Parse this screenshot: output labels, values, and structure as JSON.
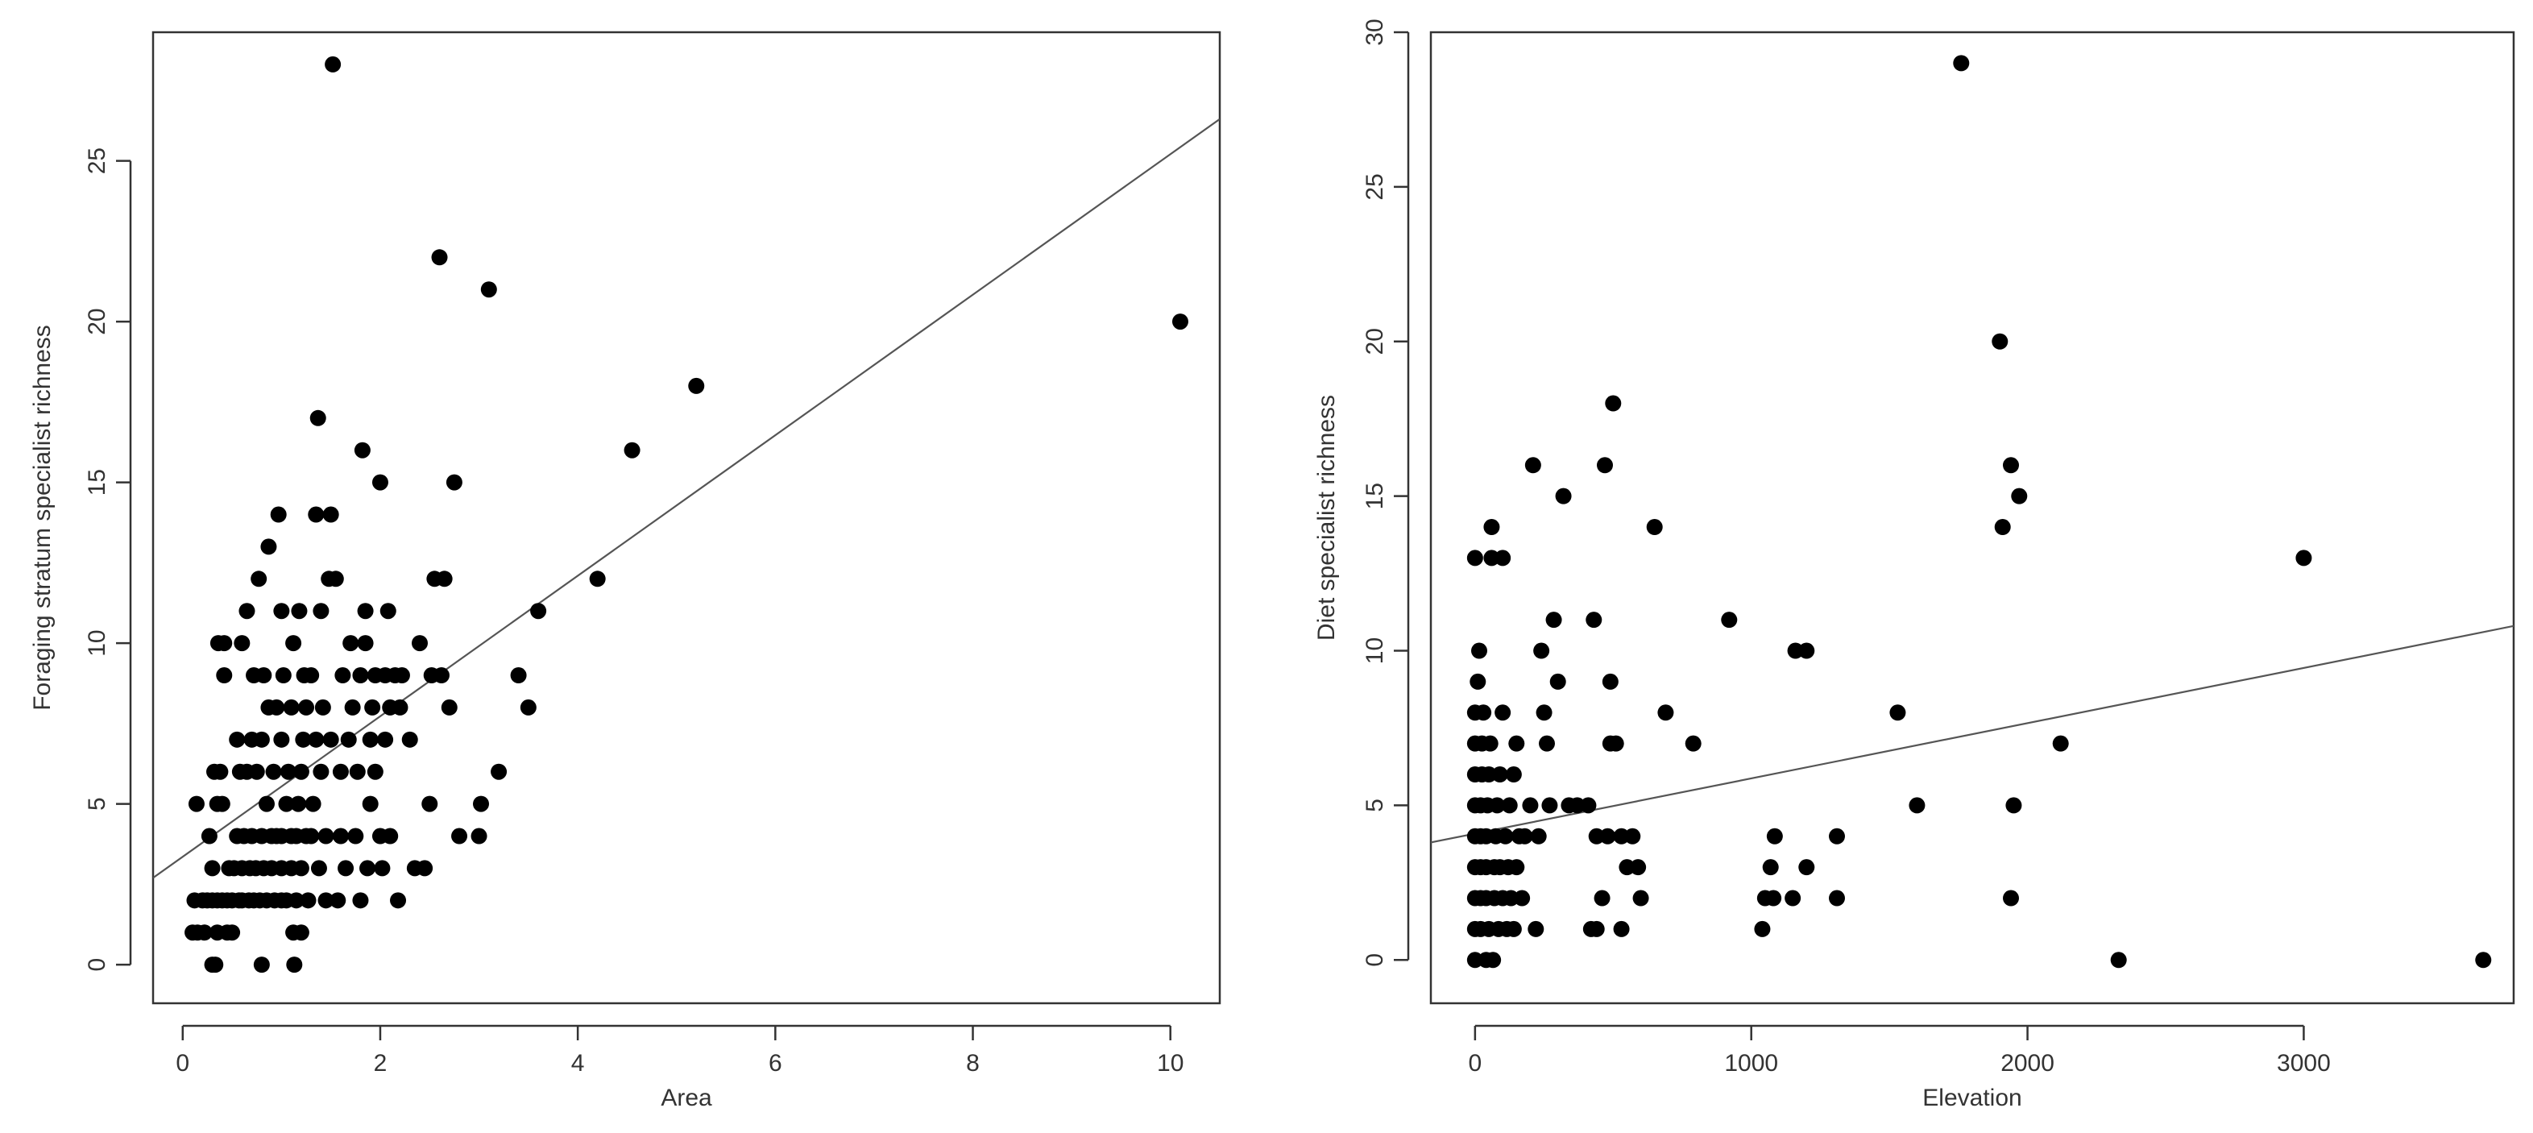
{
  "chart_data": [
    {
      "type": "scatter",
      "xlabel": "Area",
      "ylabel": "Foraging stratum specialist richness",
      "xlim": [
        -0.3,
        10.5
      ],
      "ylim": [
        -1.2,
        29
      ],
      "xticks": [
        0,
        2,
        4,
        6,
        8,
        10
      ],
      "yticks": [
        0,
        5,
        10,
        15,
        20,
        25
      ],
      "grid": false,
      "regression_line": {
        "x": [
          -0.3,
          10.5
        ],
        "y": [
          2.7,
          26.3
        ]
      },
      "points": [
        [
          0.1,
          1
        ],
        [
          0.12,
          2
        ],
        [
          0.14,
          5
        ],
        [
          0.15,
          1
        ],
        [
          0.2,
          2
        ],
        [
          0.22,
          1
        ],
        [
          0.25,
          2
        ],
        [
          0.27,
          4
        ],
        [
          0.3,
          0
        ],
        [
          0.3,
          2
        ],
        [
          0.3,
          3
        ],
        [
          0.32,
          6
        ],
        [
          0.33,
          0
        ],
        [
          0.35,
          1
        ],
        [
          0.35,
          2
        ],
        [
          0.35,
          5
        ],
        [
          0.36,
          10
        ],
        [
          0.38,
          6
        ],
        [
          0.4,
          2
        ],
        [
          0.4,
          5
        ],
        [
          0.42,
          9
        ],
        [
          0.42,
          10
        ],
        [
          0.45,
          1
        ],
        [
          0.45,
          2
        ],
        [
          0.47,
          3
        ],
        [
          0.5,
          1
        ],
        [
          0.5,
          2
        ],
        [
          0.52,
          3
        ],
        [
          0.55,
          4
        ],
        [
          0.55,
          7
        ],
        [
          0.57,
          2
        ],
        [
          0.58,
          6
        ],
        [
          0.6,
          2
        ],
        [
          0.6,
          3
        ],
        [
          0.6,
          10
        ],
        [
          0.62,
          4
        ],
        [
          0.65,
          6
        ],
        [
          0.65,
          11
        ],
        [
          0.67,
          2
        ],
        [
          0.68,
          3
        ],
        [
          0.7,
          4
        ],
        [
          0.7,
          7
        ],
        [
          0.72,
          2
        ],
        [
          0.72,
          9
        ],
        [
          0.74,
          3
        ],
        [
          0.75,
          6
        ],
        [
          0.77,
          12
        ],
        [
          0.78,
          2
        ],
        [
          0.8,
          0
        ],
        [
          0.8,
          4
        ],
        [
          0.8,
          7
        ],
        [
          0.82,
          3
        ],
        [
          0.82,
          9
        ],
        [
          0.85,
          2
        ],
        [
          0.85,
          5
        ],
        [
          0.87,
          8
        ],
        [
          0.87,
          13
        ],
        [
          0.9,
          3
        ],
        [
          0.9,
          4
        ],
        [
          0.92,
          6
        ],
        [
          0.93,
          2
        ],
        [
          0.95,
          8
        ],
        [
          0.95,
          4
        ],
        [
          0.97,
          14
        ],
        [
          1.0,
          2
        ],
        [
          1.0,
          3
        ],
        [
          1.0,
          4
        ],
        [
          1.0,
          7
        ],
        [
          1.0,
          11
        ],
        [
          1.02,
          9
        ],
        [
          1.05,
          5
        ],
        [
          1.05,
          2
        ],
        [
          1.07,
          6
        ],
        [
          1.1,
          3
        ],
        [
          1.1,
          4
        ],
        [
          1.1,
          8
        ],
        [
          1.12,
          1
        ],
        [
          1.12,
          10
        ],
        [
          1.13,
          0
        ],
        [
          1.15,
          4
        ],
        [
          1.15,
          2
        ],
        [
          1.17,
          5
        ],
        [
          1.18,
          11
        ],
        [
          1.2,
          1
        ],
        [
          1.2,
          3
        ],
        [
          1.2,
          6
        ],
        [
          1.22,
          7
        ],
        [
          1.23,
          9
        ],
        [
          1.25,
          4
        ],
        [
          1.25,
          8
        ],
        [
          1.27,
          2
        ],
        [
          1.3,
          4
        ],
        [
          1.3,
          9
        ],
        [
          1.32,
          5
        ],
        [
          1.35,
          14
        ],
        [
          1.35,
          7
        ],
        [
          1.37,
          17
        ],
        [
          1.38,
          3
        ],
        [
          1.4,
          11
        ],
        [
          1.4,
          6
        ],
        [
          1.42,
          8
        ],
        [
          1.45,
          2
        ],
        [
          1.45,
          4
        ],
        [
          1.48,
          12
        ],
        [
          1.5,
          7
        ],
        [
          1.5,
          14
        ],
        [
          1.52,
          28
        ],
        [
          1.55,
          12
        ],
        [
          1.57,
          2
        ],
        [
          1.6,
          4
        ],
        [
          1.6,
          6
        ],
        [
          1.62,
          9
        ],
        [
          1.65,
          3
        ],
        [
          1.68,
          7
        ],
        [
          1.7,
          10
        ],
        [
          1.72,
          8
        ],
        [
          1.75,
          4
        ],
        [
          1.77,
          6
        ],
        [
          1.8,
          2
        ],
        [
          1.8,
          9
        ],
        [
          1.82,
          16
        ],
        [
          1.85,
          11
        ],
        [
          1.85,
          10
        ],
        [
          1.87,
          3
        ],
        [
          1.9,
          7
        ],
        [
          1.9,
          5
        ],
        [
          1.92,
          8
        ],
        [
          1.95,
          9
        ],
        [
          1.95,
          6
        ],
        [
          2.0,
          4
        ],
        [
          2.0,
          15
        ],
        [
          2.02,
          3
        ],
        [
          2.05,
          7
        ],
        [
          2.05,
          9
        ],
        [
          2.08,
          11
        ],
        [
          2.1,
          4
        ],
        [
          2.1,
          8
        ],
        [
          2.15,
          9
        ],
        [
          2.18,
          2
        ],
        [
          2.2,
          8
        ],
        [
          2.22,
          9
        ],
        [
          2.3,
          7
        ],
        [
          2.35,
          3
        ],
        [
          2.4,
          10
        ],
        [
          2.45,
          3
        ],
        [
          2.5,
          5
        ],
        [
          2.52,
          9
        ],
        [
          2.55,
          12
        ],
        [
          2.6,
          22
        ],
        [
          2.62,
          9
        ],
        [
          2.65,
          12
        ],
        [
          2.7,
          8
        ],
        [
          2.75,
          15
        ],
        [
          2.8,
          4
        ],
        [
          3.0,
          4
        ],
        [
          3.02,
          5
        ],
        [
          3.1,
          21
        ],
        [
          3.2,
          6
        ],
        [
          3.4,
          9
        ],
        [
          3.5,
          8
        ],
        [
          3.6,
          11
        ],
        [
          4.2,
          12
        ],
        [
          4.55,
          16
        ],
        [
          5.2,
          18
        ],
        [
          10.1,
          20
        ]
      ]
    },
    {
      "type": "scatter",
      "xlabel": "Elevation",
      "ylabel": "Diet specialist richness",
      "xlim": [
        -160,
        3760
      ],
      "ylim": [
        -1.4,
        30
      ],
      "xticks": [
        0,
        1000,
        2000,
        3000
      ],
      "yticks": [
        0,
        5,
        10,
        15,
        20,
        25,
        30
      ],
      "grid": false,
      "regression_line": {
        "x": [
          -160,
          3760
        ],
        "y": [
          3.8,
          10.8
        ]
      },
      "points": [
        [
          0,
          0
        ],
        [
          0,
          1
        ],
        [
          0,
          2
        ],
        [
          0,
          3
        ],
        [
          0,
          4
        ],
        [
          0,
          5
        ],
        [
          0,
          6
        ],
        [
          0,
          7
        ],
        [
          0,
          8
        ],
        [
          0,
          13
        ],
        [
          10,
          9
        ],
        [
          15,
          10
        ],
        [
          20,
          1
        ],
        [
          20,
          2
        ],
        [
          20,
          3
        ],
        [
          20,
          4
        ],
        [
          20,
          5
        ],
        [
          25,
          6
        ],
        [
          25,
          7
        ],
        [
          30,
          8
        ],
        [
          40,
          0
        ],
        [
          40,
          2
        ],
        [
          40,
          3
        ],
        [
          40,
          4
        ],
        [
          45,
          5
        ],
        [
          50,
          1
        ],
        [
          50,
          6
        ],
        [
          55,
          7
        ],
        [
          60,
          14
        ],
        [
          60,
          13
        ],
        [
          65,
          0
        ],
        [
          70,
          2
        ],
        [
          70,
          3
        ],
        [
          75,
          4
        ],
        [
          80,
          5
        ],
        [
          85,
          1
        ],
        [
          90,
          3
        ],
        [
          90,
          6
        ],
        [
          100,
          8
        ],
        [
          100,
          13
        ],
        [
          100,
          2
        ],
        [
          110,
          4
        ],
        [
          115,
          1
        ],
        [
          120,
          3
        ],
        [
          125,
          5
        ],
        [
          130,
          2
        ],
        [
          140,
          6
        ],
        [
          140,
          1
        ],
        [
          150,
          7
        ],
        [
          150,
          3
        ],
        [
          160,
          4
        ],
        [
          170,
          2
        ],
        [
          180,
          4
        ],
        [
          200,
          5
        ],
        [
          210,
          16
        ],
        [
          220,
          1
        ],
        [
          230,
          4
        ],
        [
          240,
          10
        ],
        [
          250,
          8
        ],
        [
          260,
          7
        ],
        [
          270,
          5
        ],
        [
          285,
          11
        ],
        [
          300,
          9
        ],
        [
          320,
          15
        ],
        [
          340,
          5
        ],
        [
          370,
          5
        ],
        [
          410,
          5
        ],
        [
          420,
          1
        ],
        [
          430,
          11
        ],
        [
          440,
          1
        ],
        [
          440,
          4
        ],
        [
          460,
          2
        ],
        [
          470,
          16
        ],
        [
          480,
          4
        ],
        [
          490,
          7
        ],
        [
          490,
          9
        ],
        [
          500,
          18
        ],
        [
          510,
          7
        ],
        [
          530,
          4
        ],
        [
          530,
          1
        ],
        [
          550,
          3
        ],
        [
          570,
          4
        ],
        [
          590,
          3
        ],
        [
          600,
          2
        ],
        [
          650,
          14
        ],
        [
          690,
          8
        ],
        [
          790,
          7
        ],
        [
          920,
          11
        ],
        [
          1040,
          1
        ],
        [
          1050,
          2
        ],
        [
          1070,
          3
        ],
        [
          1080,
          2
        ],
        [
          1085,
          4
        ],
        [
          1150,
          2
        ],
        [
          1160,
          10
        ],
        [
          1200,
          10
        ],
        [
          1200,
          3
        ],
        [
          1310,
          4
        ],
        [
          1310,
          2
        ],
        [
          1530,
          8
        ],
        [
          1600,
          5
        ],
        [
          1760,
          29
        ],
        [
          1900,
          20
        ],
        [
          1910,
          14
        ],
        [
          1940,
          16
        ],
        [
          1940,
          2
        ],
        [
          1950,
          5
        ],
        [
          1970,
          15
        ],
        [
          2120,
          7
        ],
        [
          2330,
          0
        ],
        [
          3000,
          13
        ],
        [
          3650,
          0
        ]
      ]
    }
  ]
}
